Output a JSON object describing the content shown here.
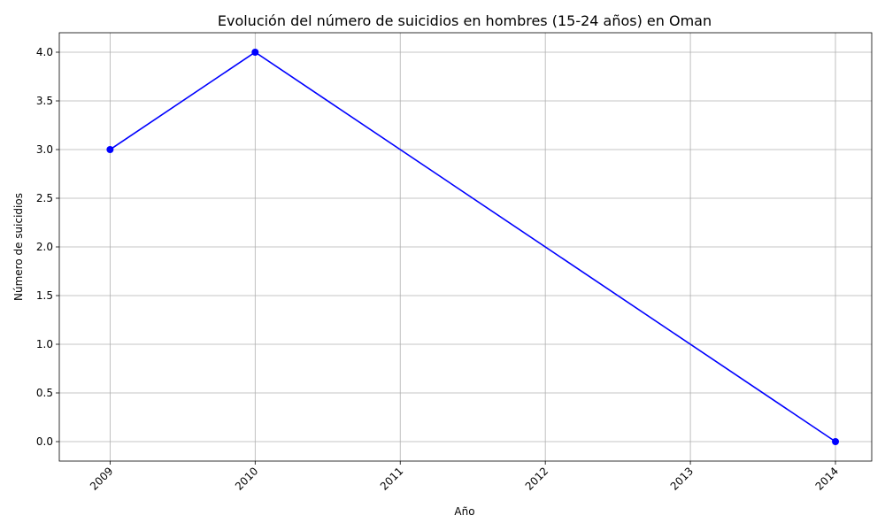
{
  "chart_data": {
    "type": "line",
    "title": "Evolución del número de suicidios en hombres (15-24 años) en Oman",
    "xlabel": "Año",
    "ylabel": "Número de suicidios",
    "x_ticks": [
      "2009",
      "2010",
      "2011",
      "2012",
      "2013",
      "2014"
    ],
    "y_ticks": [
      "0.0",
      "0.5",
      "1.0",
      "1.5",
      "2.0",
      "2.5",
      "3.0",
      "3.5",
      "4.0"
    ],
    "xlim": [
      2008.65,
      2014.25
    ],
    "ylim": [
      -0.2,
      4.2
    ],
    "grid": true,
    "x_tick_rotation": 45,
    "series": [
      {
        "color": "#0000ff",
        "marker": "circle",
        "points": [
          {
            "x": 2009,
            "y": 3
          },
          {
            "x": 2010,
            "y": 4
          },
          {
            "x": 2014,
            "y": 0
          }
        ]
      }
    ]
  }
}
